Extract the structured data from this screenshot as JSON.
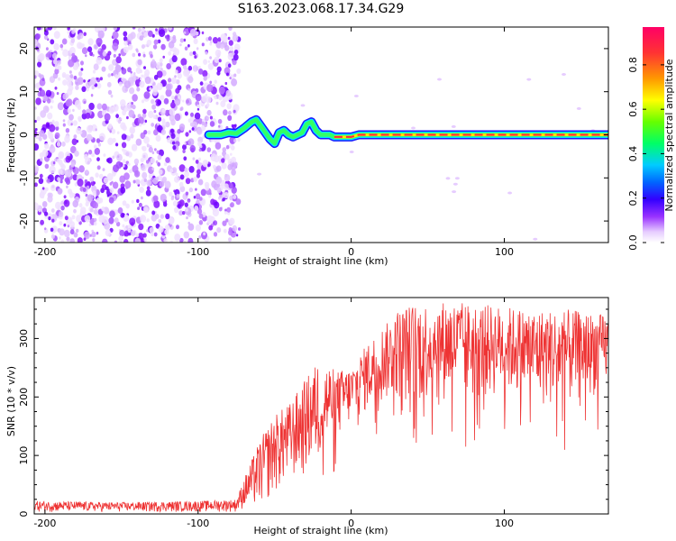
{
  "title": "S163.2023.068.17.34.G29",
  "chart_data": [
    {
      "type": "heatmap",
      "xlabel": "Height of straight line (km)",
      "ylabel": "Frequency (Hz)",
      "xlim": [
        -207,
        168
      ],
      "ylim": [
        -25,
        25
      ],
      "x_ticks": [
        -200,
        -100,
        0,
        100
      ],
      "y_ticks": [
        -20,
        -10,
        0,
        10,
        20
      ],
      "colorbar": {
        "label": "Normalized spectral amplitude",
        "range": [
          0,
          0.97
        ],
        "ticks": [
          0.0,
          0.2,
          0.4,
          0.6,
          0.8
        ],
        "colormap": [
          "#ffffff",
          "#e6ccff",
          "#9933ff",
          "#3300ff",
          "#0066ff",
          "#00ccff",
          "#00ff66",
          "#66ff00",
          "#ffff00",
          "#ff9900",
          "#ff3333",
          "#ff0066"
        ]
      },
      "noise_region_x": [
        -207,
        -73
      ],
      "signal_trace": {
        "x": [
          -93,
          -85,
          -80,
          -75,
          -70,
          -65,
          -62,
          -59,
          -56,
          -53,
          -50,
          -47,
          -44,
          -41,
          -38,
          -35,
          -32,
          -29,
          -26,
          -23,
          -20,
          -17,
          -14,
          -11,
          -8,
          -5,
          -2,
          0,
          5,
          20,
          40,
          60,
          80,
          100,
          120,
          140,
          168
        ],
        "freq": [
          0,
          0,
          0.5,
          0.3,
          1.5,
          3,
          3.5,
          2,
          0.5,
          -1,
          -2,
          0.5,
          1,
          0,
          -0.5,
          0,
          0.5,
          2.5,
          3,
          1,
          0,
          0,
          0,
          -0.5,
          -0.5,
          -0.5,
          -0.5,
          -0.5,
          0,
          0,
          0,
          0,
          0,
          0,
          0,
          0,
          0
        ]
      }
    },
    {
      "type": "line",
      "xlabel": "Height of straight line (km)",
      "ylabel": "SNR (10 * v/v)",
      "xlim": [
        -207,
        168
      ],
      "ylim": [
        0,
        370
      ],
      "x_ticks": [
        -200,
        -100,
        0,
        100
      ],
      "y_ticks": [
        0,
        100,
        200,
        300
      ],
      "color": "#ee3333",
      "envelope": {
        "x": [
          -207,
          -150,
          -100,
          -75,
          -70,
          -60,
          -50,
          -40,
          -30,
          -20,
          -10,
          0,
          10,
          20,
          25,
          30,
          40,
          60,
          80,
          100,
          120,
          140,
          168
        ],
        "lower": [
          3,
          3,
          3,
          3,
          8,
          5,
          30,
          50,
          60,
          80,
          120,
          150,
          170,
          185,
          190,
          190,
          180,
          190,
          185,
          200,
          180,
          175,
          215
        ],
        "upper": [
          22,
          20,
          22,
          25,
          60,
          125,
          170,
          190,
          230,
          270,
          245,
          250,
          290,
          320,
          330,
          350,
          360,
          365,
          360,
          355,
          350,
          350,
          340
        ]
      }
    }
  ]
}
